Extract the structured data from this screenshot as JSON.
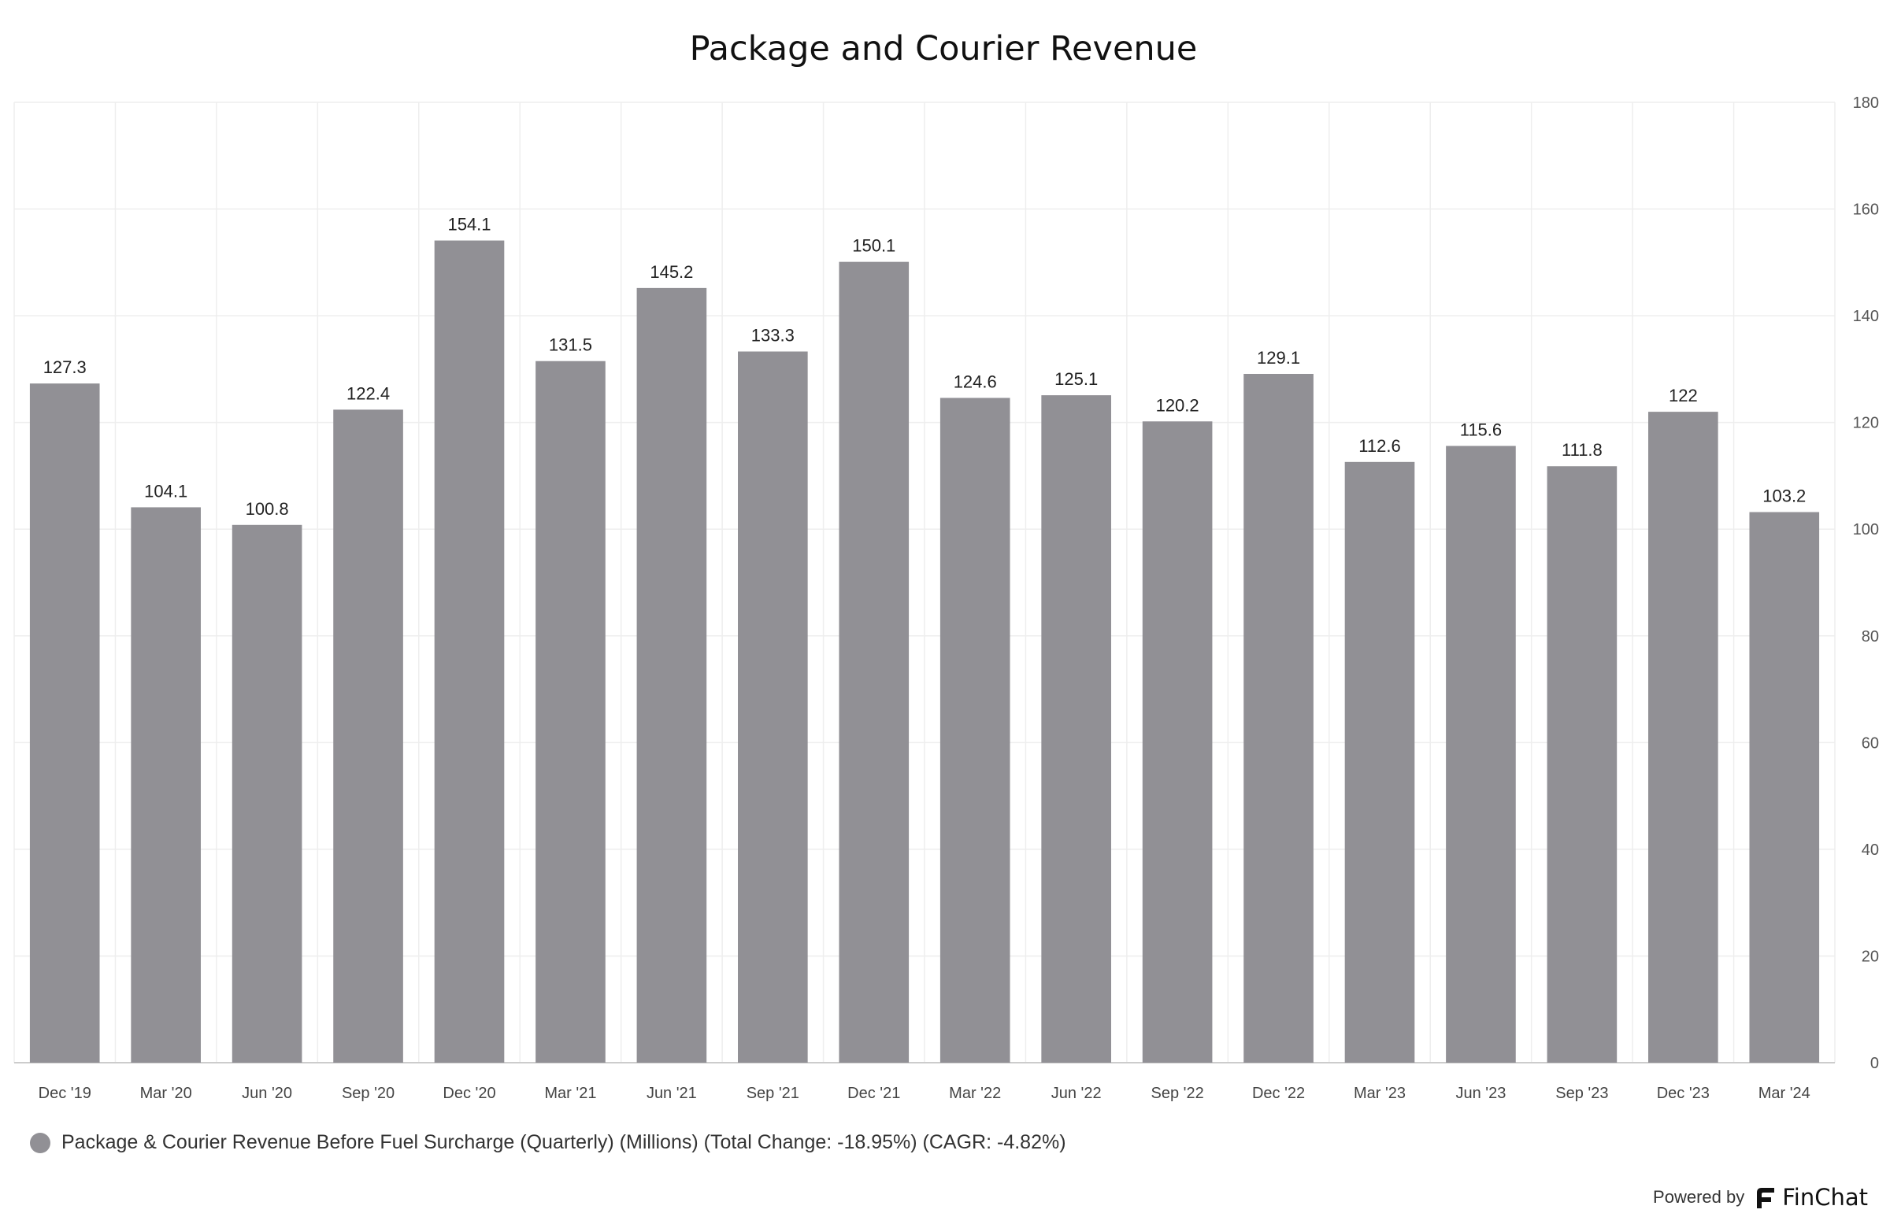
{
  "colors": {
    "bar": "#919095",
    "grid": "#eeeeee",
    "axis": "#cccccc"
  },
  "chart_data": {
    "type": "bar",
    "title": "Package and Courier Revenue",
    "categories": [
      "Dec '19",
      "Mar '20",
      "Jun '20",
      "Sep '20",
      "Dec '20",
      "Mar '21",
      "Jun '21",
      "Sep '21",
      "Dec '21",
      "Mar '22",
      "Jun '22",
      "Sep '22",
      "Dec '22",
      "Mar '23",
      "Jun '23",
      "Sep '23",
      "Dec '23",
      "Mar '24"
    ],
    "values": [
      127.3,
      104.1,
      100.8,
      122.4,
      154.1,
      131.5,
      145.2,
      133.3,
      150.1,
      124.6,
      125.1,
      120.2,
      129.1,
      112.6,
      115.6,
      111.8,
      122,
      103.2
    ],
    "series": [
      {
        "name": "Package & Courier Revenue Before Fuel Surcharge (Quarterly) (Millions) (Total Change: -18.95%) (CAGR: -4.82%)"
      }
    ],
    "ylim": [
      0,
      180
    ],
    "yticks": [
      0,
      20,
      40,
      60,
      80,
      100,
      120,
      140,
      160,
      180
    ],
    "xlabel": "",
    "ylabel": "",
    "grid": true,
    "legend_position": "bottom-left",
    "y_axis_side": "right"
  },
  "footer": {
    "powered_by": "Powered by",
    "brand": "FinChat"
  }
}
